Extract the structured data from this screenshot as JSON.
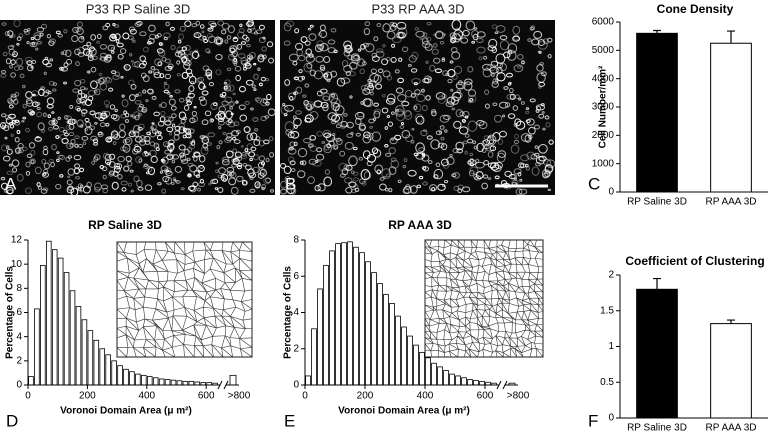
{
  "images": [
    {
      "title": "P33 RP Saline 3D",
      "panel": "A"
    },
    {
      "title": "P33 RP AAA 3D",
      "panel": "B"
    }
  ],
  "chart_data": [
    {
      "type": "bar",
      "panel": "C",
      "title": "Cone Density",
      "ylabel": "Cell Number/mm²",
      "categories": [
        "RP Saline 3D",
        "RP AAA 3D"
      ],
      "values": [
        5600,
        5250
      ],
      "errors": [
        100,
        430
      ],
      "colors": [
        "#000000",
        "#ffffff"
      ],
      "ylim": [
        0,
        6000
      ],
      "yticks": [
        0,
        1000,
        2000,
        3000,
        4000,
        5000,
        6000
      ]
    },
    {
      "type": "bar",
      "panel": "F",
      "title": "Coefficient of Clustering",
      "categories": [
        "RP Saline 3D",
        "RP AAA 3D"
      ],
      "values": [
        1.8,
        1.32
      ],
      "errors": [
        0.15,
        0.05
      ],
      "colors": [
        "#000000",
        "#ffffff"
      ],
      "ylim": [
        0,
        2
      ],
      "yticks": [
        0,
        0.5,
        1,
        1.5,
        2
      ]
    },
    {
      "type": "histogram",
      "panel": "D",
      "title": "RP Saline 3D",
      "xlabel": "Voronoi Domain Area (μ m²)",
      "ylabel": "Percentage of Cells",
      "bins": [
        0,
        20,
        40,
        60,
        80,
        100,
        120,
        140,
        160,
        180,
        200,
        220,
        240,
        260,
        280,
        300,
        320,
        340,
        360,
        380,
        400,
        420,
        440,
        460,
        480,
        500,
        520,
        540,
        560,
        580,
        600,
        620,
        640
      ],
      "values": [
        0.7,
        6.3,
        9.9,
        11.9,
        11.2,
        10.5,
        9.3,
        7.8,
        6.5,
        5.4,
        4.5,
        3.7,
        3.0,
        2.5,
        2.0,
        1.6,
        1.3,
        1.1,
        0.9,
        0.8,
        0.7,
        0.6,
        0.5,
        0.45,
        0.4,
        0.35,
        0.3,
        0.3,
        0.25,
        0.2,
        0.2,
        0.15
      ],
      "overflow_bin": {
        "label": ">800",
        "value": 0.8
      },
      "color": "#ffffff",
      "xlim": [
        0,
        660
      ],
      "xticks": [
        0,
        200,
        400,
        600
      ],
      "ylim": [
        0,
        12
      ],
      "yticks": [
        0,
        2,
        4,
        6,
        8,
        10,
        12
      ]
    },
    {
      "type": "histogram",
      "panel": "E",
      "title": "RP AAA 3D",
      "xlabel": "Voronoi Domain Area (μ m²)",
      "ylabel": "Percentage of Cells",
      "bins": [
        0,
        20,
        40,
        60,
        80,
        100,
        120,
        140,
        160,
        180,
        200,
        220,
        240,
        260,
        280,
        300,
        320,
        340,
        360,
        380,
        400,
        420,
        440,
        460,
        480,
        500,
        520,
        540,
        560,
        580,
        600,
        620,
        640
      ],
      "values": [
        0.5,
        3.1,
        5.3,
        6.6,
        7.4,
        7.8,
        7.85,
        7.9,
        7.6,
        7.3,
        6.8,
        6.2,
        5.6,
        5.0,
        4.5,
        3.8,
        3.2,
        2.7,
        2.2,
        1.8,
        1.5,
        1.2,
        1.0,
        0.8,
        0.6,
        0.5,
        0.4,
        0.3,
        0.25,
        0.2,
        0.15,
        0.1
      ],
      "overflow_bin": {
        "label": ">800",
        "value": 0.1
      },
      "color": "#ffffff",
      "xlim": [
        0,
        660
      ],
      "xticks": [
        0,
        200,
        400,
        600
      ],
      "ylim": [
        0,
        8
      ],
      "yticks": [
        0,
        2,
        4,
        6,
        8
      ]
    }
  ]
}
